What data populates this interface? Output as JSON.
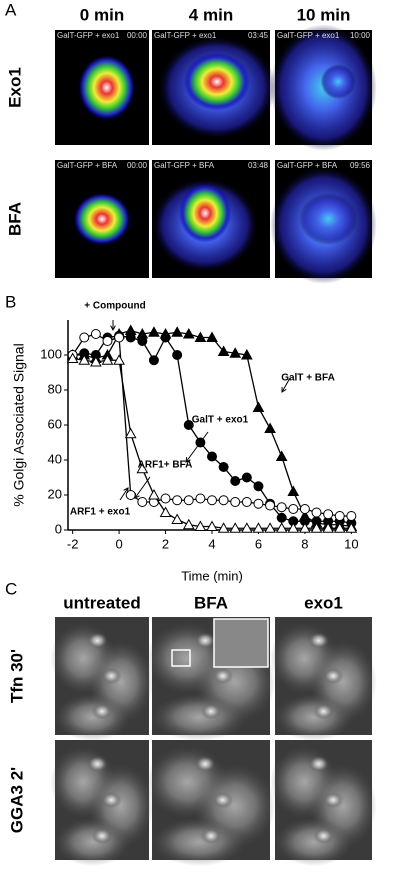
{
  "panel_a": {
    "label": "A",
    "columns": [
      "0 min",
      "4 min",
      "10 min"
    ],
    "rows": [
      "Exo1",
      "BFA"
    ],
    "images": [
      [
        {
          "caption": "GalT-GFP + exo1",
          "time": "00:00"
        },
        {
          "caption": "GalT-GFP + exo1",
          "time": "03:45"
        },
        {
          "caption": "GalT-GFP + exo1",
          "time": "10:00"
        }
      ],
      [
        {
          "caption": "GalT-GFP + BFA",
          "time": "00:00"
        },
        {
          "caption": "GalT-GFP + BFA",
          "time": "03:48"
        },
        {
          "caption": "GalT-GFP + BFA",
          "time": "09:56"
        }
      ]
    ]
  },
  "chart_data": {
    "type": "line",
    "label": "B",
    "x_label": "Time (min)",
    "y_label": "% Golgi Associated Signal",
    "x": [
      -2,
      -1.5,
      -1,
      -0.5,
      0,
      0.5,
      1,
      1.5,
      2,
      2.5,
      3,
      3.5,
      4,
      4.5,
      5,
      5.5,
      6,
      6.5,
      7,
      7.5,
      8,
      8.5,
      9,
      9.5,
      10
    ],
    "series": [
      {
        "name": "GalT + exo1",
        "color": "#000000",
        "marker": "circle",
        "filled": true,
        "values": [
          100,
          101,
          100,
          110,
          111,
          110,
          108,
          97,
          110,
          100,
          60,
          50,
          42,
          36,
          28,
          30,
          25,
          15,
          7,
          5,
          5,
          5,
          5,
          5,
          4
        ]
      },
      {
        "name": "GalT + BFA",
        "color": "#000000",
        "marker": "triangle",
        "filled": true,
        "values": [
          100,
          100,
          98,
          100,
          112,
          114,
          112,
          113,
          112,
          113,
          112,
          110,
          110,
          102,
          101,
          100,
          70,
          58,
          42,
          22,
          8,
          4,
          3,
          3,
          2
        ]
      },
      {
        "name": "ARF1 + exo1",
        "color": "#000000",
        "marker": "circle",
        "filled": false,
        "values": [
          100,
          110,
          112,
          108,
          110,
          20,
          16,
          16,
          18,
          17,
          17,
          18,
          17,
          17,
          16,
          16,
          15,
          14,
          13,
          12,
          12,
          10,
          9,
          8,
          8
        ]
      },
      {
        "name": "ARF1+ BFA",
        "color": "#000000",
        "marker": "triangle",
        "filled": false,
        "values": [
          98,
          97,
          96,
          97,
          97,
          55,
          35,
          20,
          10,
          6,
          3,
          2,
          2,
          1,
          1,
          1,
          1,
          1,
          1,
          1,
          1,
          1,
          1,
          1,
          1
        ]
      }
    ],
    "annotations": [
      "+ Compound",
      "GalT + BFA",
      "GalT + exo1",
      "ARF1+ BFA",
      "ARF1 + exo1"
    ],
    "xlim": [
      -2.2,
      10.2
    ],
    "ylim": [
      0,
      120
    ],
    "xticks": [
      -2,
      0,
      2,
      4,
      6,
      8,
      10
    ],
    "yticks": [
      0,
      20,
      40,
      60,
      80,
      100
    ]
  },
  "panel_c": {
    "label": "C",
    "columns": [
      "untreated",
      "BFA",
      "exo1"
    ],
    "rows": [
      "Tfn 30'",
      "GGA3 2'"
    ]
  }
}
